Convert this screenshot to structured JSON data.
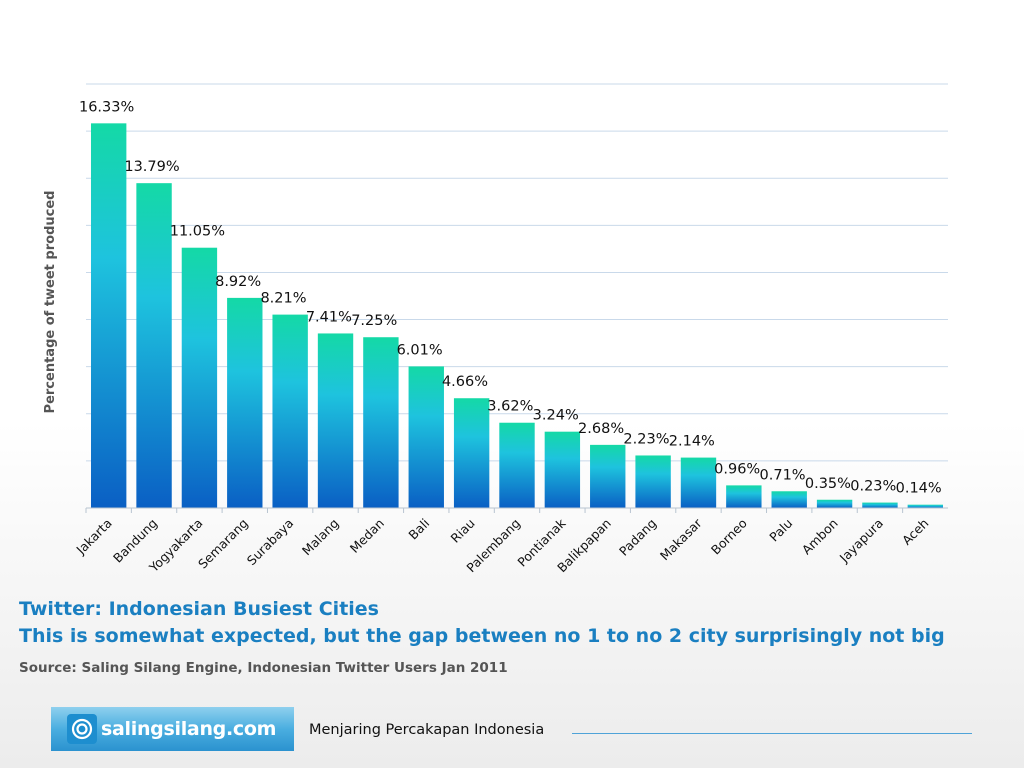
{
  "chart_data": {
    "type": "bar",
    "ylabel": "Percentage of tweet produced",
    "ylim": [
      0,
      18
    ],
    "grid": true,
    "categories": [
      "Jakarta",
      "Bandung",
      "Yogyakarta",
      "Semarang",
      "Surabaya",
      "Malang",
      "Medan",
      "Bali",
      "Riau",
      "Palembang",
      "Pontianak",
      "Balikpapan",
      "Padang",
      "Makasar",
      "Borneo",
      "Palu",
      "Ambon",
      "Jayapura",
      "Aceh"
    ],
    "values": [
      16.33,
      13.79,
      11.05,
      8.92,
      8.21,
      7.41,
      7.25,
      6.01,
      4.66,
      3.62,
      3.24,
      2.68,
      2.23,
      2.14,
      0.96,
      0.71,
      0.35,
      0.23,
      0.14
    ],
    "data_labels": [
      "16.33%",
      "13.79%",
      "11.05%",
      "8.92%",
      "8.21%",
      "7.41%",
      "7.25%",
      "6.01%",
      "4.66%",
      "3.62%",
      "3.24%",
      "2.68%",
      "2.23%",
      "2.14%",
      "0.96%",
      "0.71%",
      "0.35%",
      "0.23%",
      "0.14%"
    ],
    "colors": {
      "bar_top": "#14d9a6",
      "bar_mid": "#1ec3de",
      "bar_bottom": "#0a5fc4",
      "grid": "#c9d9ea"
    }
  },
  "caption": {
    "title": "Twitter: Indonesian Busiest Cities",
    "subtitle": "This is somewhat expected, but the gap between no 1 to no 2 city surprisingly not big",
    "source": "Source: Saling Silang Engine, Indonesian Twitter Users Jan 2011"
  },
  "footer": {
    "logo_text": "salingsilang.com",
    "tagline": "Menjaring Percakapan Indonesia"
  },
  "colors": {
    "accent": "#1a7fc1",
    "logo_bg": "#3aa3dc"
  }
}
